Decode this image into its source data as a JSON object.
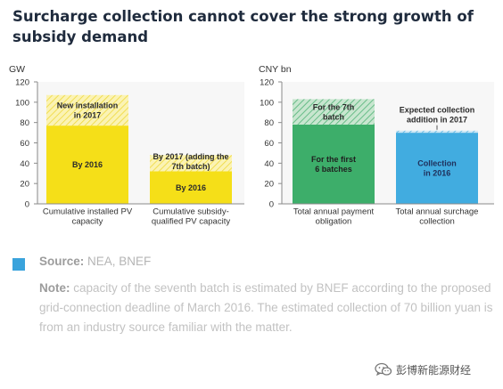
{
  "title": "Surcharge collection cannot cover the strong growth of subsidy demand",
  "chart_data": [
    {
      "type": "bar",
      "stacked": true,
      "ylabel": "GW",
      "ylim": [
        0,
        120
      ],
      "yticks": [
        0,
        20,
        40,
        60,
        80,
        100,
        120
      ],
      "grid": false,
      "categories": [
        "Cumulative installed PV capacity",
        "Cumulative subsidy-qualified PV capacity"
      ],
      "category_lines": [
        [
          "Cumulative installed  PV",
          "capacity"
        ],
        [
          "Cumulative subsidy-",
          "qualified PV capacity"
        ]
      ],
      "series": [
        {
          "name": "By 2016",
          "values": [
            77,
            32
          ],
          "color": "#f5df18"
        },
        {
          "name": "New installation in 2017",
          "values": [
            30,
            0
          ],
          "color": "#f9ef9c"
        },
        {
          "name": "By 2017 (adding the 7th batch)",
          "values": [
            0,
            16
          ],
          "color": "#f9ef9c"
        }
      ],
      "segment_labels": [
        {
          "lines": [
            "New installation",
            "in 2017"
          ]
        },
        {
          "lines": [
            "By 2016"
          ]
        },
        {
          "lines": [
            "By 2017 (adding the",
            "7th batch)"
          ]
        },
        {
          "lines": [
            "By 2016"
          ]
        }
      ]
    },
    {
      "type": "bar",
      "stacked": true,
      "ylabel": "CNY bn",
      "ylim": [
        0,
        120
      ],
      "yticks": [
        0,
        20,
        40,
        60,
        80,
        100,
        120
      ],
      "grid": false,
      "categories": [
        "Total annual payment obligation",
        "Total annual surchage collection"
      ],
      "category_lines": [
        [
          "Total annual payment",
          "obligation"
        ],
        [
          "Total annual surchage",
          "collection"
        ]
      ],
      "series": [
        {
          "name": "For the first 6 batches",
          "values": [
            78,
            0
          ],
          "color": "#3dae6a"
        },
        {
          "name": "For the 7th batch",
          "values": [
            25,
            0
          ],
          "color": "#9dd2a9"
        },
        {
          "name": "Collection in 2016",
          "values": [
            0,
            70
          ],
          "color": "#41ace0"
        },
        {
          "name": "Expected collection addition in 2017",
          "values": [
            0,
            2
          ],
          "color": "#a9d7ee"
        }
      ],
      "segment_labels": [
        {
          "lines": [
            "For the 7th",
            "batch"
          ]
        },
        {
          "lines": [
            "For the first",
            "6 batches"
          ]
        },
        {
          "lines": [
            "Collection",
            "in 2016"
          ]
        }
      ],
      "annotation": {
        "lines": [
          "Expected collection",
          "addition in 2017"
        ]
      }
    }
  ],
  "source": {
    "label": "Source:",
    "text": " NEA, BNEF"
  },
  "note": {
    "label": "Note:",
    "text": " capacity of the seventh batch is estimated by BNEF according to the proposed grid-connection deadline of March 2016. The estimated collection of 70 billion yuan is from an industry source familiar with the matter."
  },
  "watermark": {
    "text": "彭博新能源财经",
    "icon": "wechat-logo-icon"
  }
}
